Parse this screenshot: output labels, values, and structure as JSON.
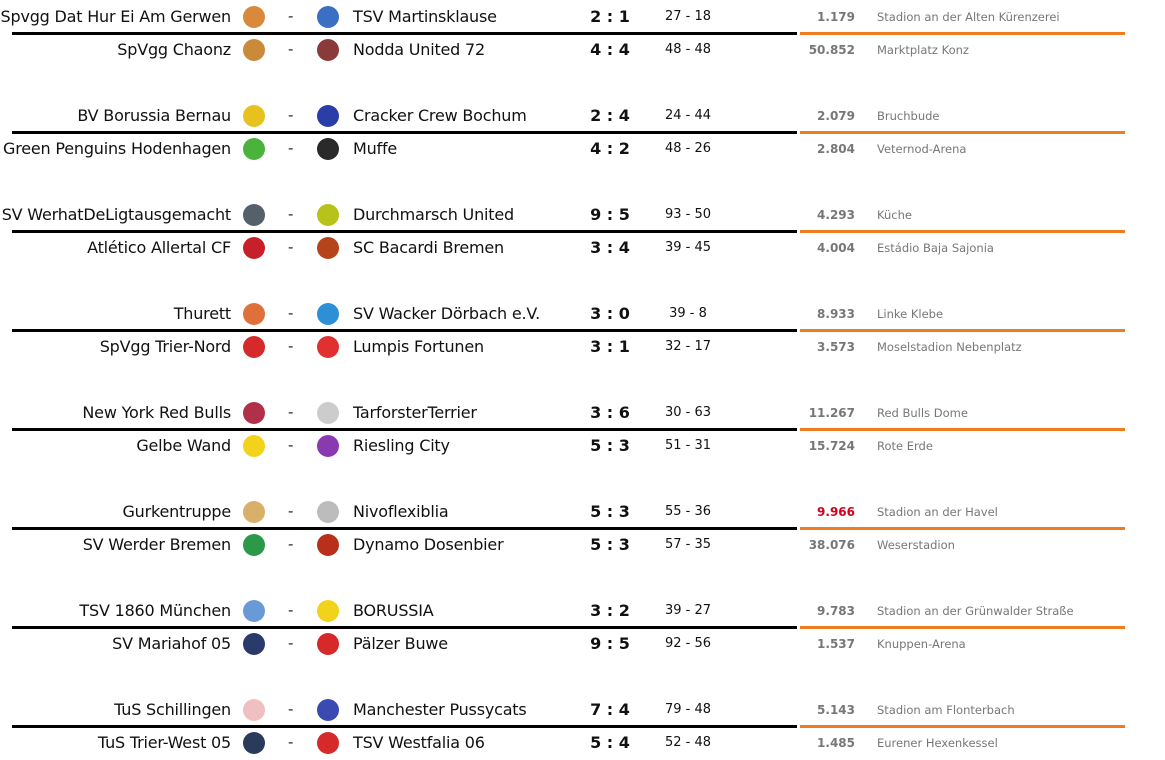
{
  "colors": {
    "divider_left": "#000000",
    "divider_right": "#ee7d22",
    "highlight_attendance": "#d0021b"
  },
  "pairs": [
    [
      {
        "home": "Spvgg Dat Hur Ei Am Gerwen",
        "home_logo": "#d9893a",
        "away": "TSV Martinsklause",
        "away_logo": "#3a6fc4",
        "score": "2 : 1",
        "points": "27 - 18",
        "attendance": "1.179",
        "venue": "Stadion an der Alten Kürenzerei"
      },
      {
        "home": "SpVgg Chaonz",
        "home_logo": "#c98a3a",
        "away": "Nodda United 72",
        "away_logo": "#8a3a3a",
        "score": "4 : 4",
        "points": "48 - 48",
        "attendance": "50.852",
        "venue": "Marktplatz Konz"
      }
    ],
    [
      {
        "home": "BV Borussia Bernau",
        "home_logo": "#e7c21e",
        "away": "Cracker Crew Bochum",
        "away_logo": "#2b3ea8",
        "score": "2 : 4",
        "points": "24 - 44",
        "attendance": "2.079",
        "venue": "Bruchbude"
      },
      {
        "home": "Green Penguins Hodenhagen",
        "home_logo": "#4bb33c",
        "away": "Muffe",
        "away_logo": "#2a2a2a",
        "score": "4 : 2",
        "points": "48 - 26",
        "attendance": "2.804",
        "venue": "Veternod-Arena"
      }
    ],
    [
      {
        "home": "SV WerhatDeLigtausgemacht",
        "home_logo": "#55606b",
        "away": "Durchmarsch United",
        "away_logo": "#b7c21a",
        "score": "9 : 5",
        "points": "93 - 50",
        "attendance": "4.293",
        "venue": "Küche"
      },
      {
        "home": "Atlético Allertal CF",
        "home_logo": "#c8202a",
        "away": "SC Bacardi Bremen",
        "away_logo": "#b5441c",
        "score": "3 : 4",
        "points": "39 - 45",
        "attendance": "4.004",
        "venue": "Estádio Baja Sajonia"
      }
    ],
    [
      {
        "home": "Thurett",
        "home_logo": "#e0703a",
        "away": "SV Wacker Dörbach e.V.",
        "away_logo": "#2d8fd6",
        "score": "3 : 0",
        "points": "39 - 8",
        "attendance": "8.933",
        "venue": "Linke Klebe"
      },
      {
        "home": "SpVgg Trier-Nord",
        "home_logo": "#d62a2a",
        "away": "Lumpis Fortunen",
        "away_logo": "#e03030",
        "score": "3 : 1",
        "points": "32 - 17",
        "attendance": "3.573",
        "venue": "Moselstadion Nebenplatz"
      }
    ],
    [
      {
        "home": "New York Red Bulls",
        "home_logo": "#b0304a",
        "away": "TarforsterTerrier",
        "away_logo": "#cccccc",
        "score": "3 : 6",
        "points": "30 - 63",
        "attendance": "11.267",
        "venue": "Red Bulls Dome"
      },
      {
        "home": "Gelbe Wand",
        "home_logo": "#f2d21a",
        "away": "Riesling City",
        "away_logo": "#8a3ab0",
        "score": "5 : 3",
        "points": "51 - 31",
        "attendance": "15.724",
        "venue": "Rote Erde"
      }
    ],
    [
      {
        "home": "Gurkentruppe",
        "home_logo": "#d9b06a",
        "away": "Nivoflexiblia",
        "away_logo": "#bbbbbb",
        "score": "5 : 3",
        "points": "55 - 36",
        "attendance": "9.966",
        "attendance_highlight": true,
        "venue": "Stadion an der Havel"
      },
      {
        "home": "SV Werder Bremen",
        "home_logo": "#2a9a4a",
        "away": "Dynamo Dosenbier",
        "away_logo": "#b8301a",
        "score": "5 : 3",
        "points": "57 - 35",
        "attendance": "38.076",
        "venue": "Weserstadion"
      }
    ],
    [
      {
        "home": "TSV 1860 München",
        "home_logo": "#6a9ad6",
        "away": "BORUSSIA",
        "away_logo": "#f2d21a",
        "score": "3 : 2",
        "points": "39 - 27",
        "attendance": "9.783",
        "venue": "Stadion an der Grünwalder Straße"
      },
      {
        "home": "SV Mariahof 05",
        "home_logo": "#2a3a6a",
        "away": "Pälzer Buwe",
        "away_logo": "#d62a2a",
        "score": "9 : 5",
        "points": "92 - 56",
        "attendance": "1.537",
        "venue": "Knuppen-Arena"
      }
    ],
    [
      {
        "home": "TuS Schillingen",
        "home_logo": "#f0c0c0",
        "away": "Manchester Pussycats",
        "away_logo": "#3a4ab0",
        "score": "7 : 4",
        "points": "79 - 48",
        "attendance": "5.143",
        "venue": "Stadion am Flonterbach"
      },
      {
        "home": "TuS Trier-West 05",
        "home_logo": "#2a3a5a",
        "away": "TSV Westfalia 06",
        "away_logo": "#d62a2a",
        "score": "5 : 4",
        "points": "52 - 48",
        "attendance": "1.485",
        "venue": "Eurener Hexenkessel"
      }
    ]
  ]
}
